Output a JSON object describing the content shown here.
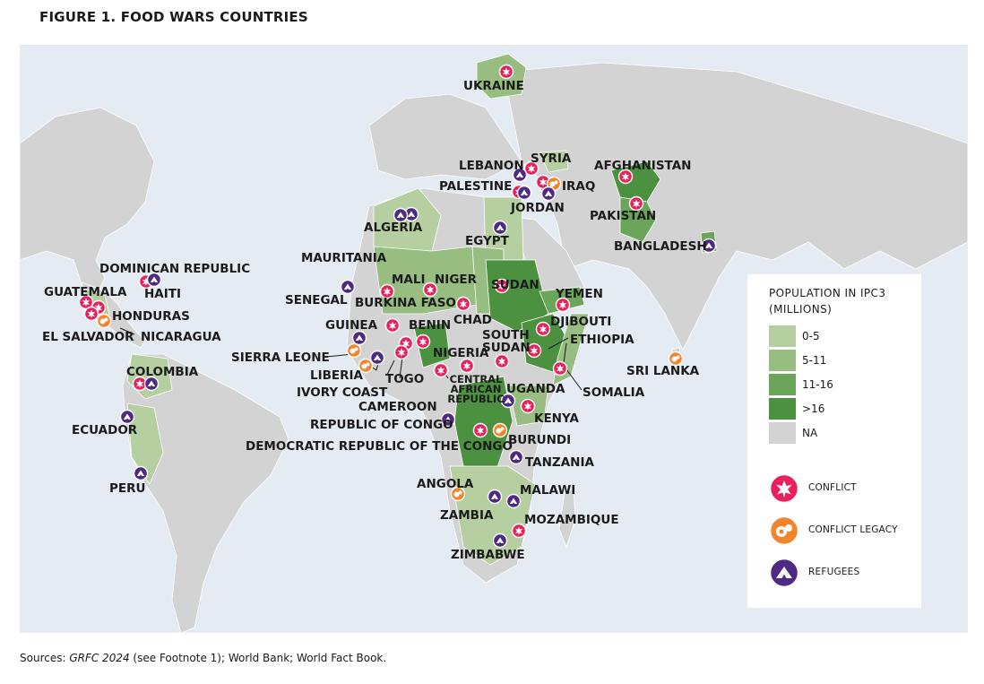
{
  "title": "FIGURE 1. FOOD WARS COUNTRIES",
  "colors": {
    "ocean": "#e4ebf3",
    "land_na": "#d3d3d3",
    "c0_5": "#b5cfa0",
    "c5_11": "#97be80",
    "c11_16": "#6aa55a",
    "c16": "#4b9140",
    "conflict": "#e8205c",
    "legacy": "#f0852d",
    "refugees": "#4f2a82"
  },
  "legend": {
    "title_line1": "POPULATION IN IPC3",
    "title_line2": "(MILLIONS)",
    "items": [
      {
        "label": "0-5",
        "color": "#b5cfa0"
      },
      {
        "label": "5-11",
        "color": "#97be80"
      },
      {
        "label": "11-16",
        "color": "#6aa55a"
      },
      {
        "label": ">16",
        "color": "#4b9140"
      },
      {
        "label": "NA",
        "color": "#d3d3d3"
      }
    ],
    "markers": [
      {
        "label": "CONFLICT",
        "icon": "conflict-icon"
      },
      {
        "label": "CONFLICT LEGACY",
        "icon": "conflict-legacy-icon"
      },
      {
        "label": "REFUGEES",
        "icon": "refugees-icon"
      }
    ]
  },
  "countries": {
    "ukraine": "UKRAINE",
    "syria": "SYRIA",
    "lebanon": "LEBANON",
    "palestine": "PALESTINE",
    "iraq": "IRAQ",
    "jordan": "JORDAN",
    "afghanistan": "AFGHANISTAN",
    "pakistan": "PAKISTAN",
    "bangladesh": "BANGLADESH",
    "algeria": "ALGERIA",
    "egypt": "EGYPT",
    "mauritania": "MAURITANIA",
    "mali": "MALI",
    "niger": "NIGER",
    "sudan": "SUDAN",
    "yemen": "YEMEN",
    "senegal": "SENEGAL",
    "burkina_faso": "BURKINA FASO",
    "chad": "CHAD",
    "djibouti": "DJIBOUTI",
    "guinea": "GUINEA",
    "benin": "BENIN",
    "south_sudan_1": "SOUTH",
    "south_sudan_2": "SUDAN",
    "ethiopia": "ETHIOPIA",
    "sierra_leone": "SIERRA LEONE",
    "nigeria": "NIGERIA",
    "liberia": "LIBERIA",
    "togo": "TOGO",
    "ivory_coast": "IVORY COAST",
    "car_1": "CENTRAL",
    "car_2": "AFRICAN",
    "car_3": "REPUBLIC",
    "uganda": "UGANDA",
    "somalia": "SOMALIA",
    "sri_lanka": "SRI LANKA",
    "cameroon": "CAMEROON",
    "kenya": "KENYA",
    "rep_congo": "REPUBLIC OF CONGO",
    "drc": "DEMOCRATIC REPUBLIC OF THE CONGO",
    "burundi": "BURUNDI",
    "tanzania": "TANZANIA",
    "angola": "ANGOLA",
    "malawi": "MALAWI",
    "zambia": "ZAMBIA",
    "mozambique": "MOZAMBIQUE",
    "zimbabwe": "ZIMBABWE",
    "dominican_republic": "DOMINICAN REPUBLIC",
    "haiti": "HAITI",
    "guatemala": "GUATEMALA",
    "honduras": "HONDURAS",
    "el_salvador": "EL SALVADOR",
    "nicaragua": "NICARAGUA",
    "colombia": "COLOMBIA",
    "ecuador": "ECUADOR",
    "peru": "PERU"
  },
  "sources": {
    "prefix": "Sources: ",
    "italic": "GRFC 2024",
    "suffix": " (see Footnote 1); World Bank; World Fact Book."
  }
}
